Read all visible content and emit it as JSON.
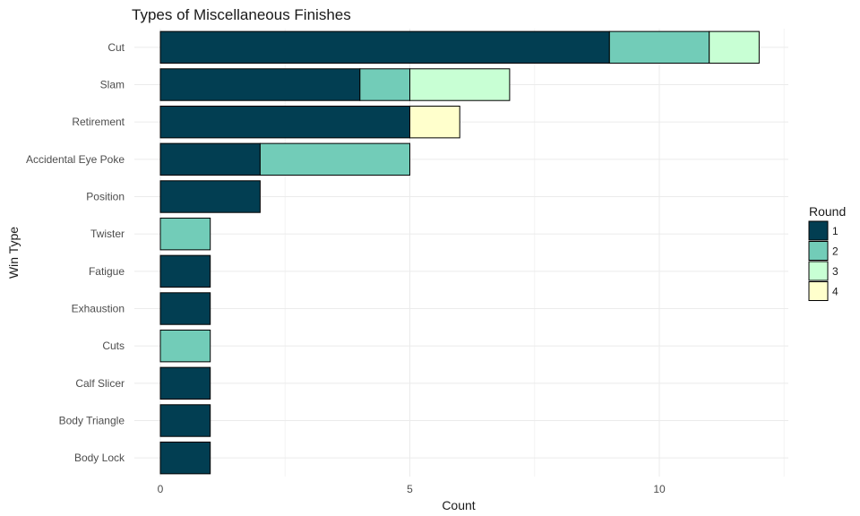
{
  "chart_data": {
    "type": "bar",
    "orientation": "horizontal",
    "stacked": true,
    "title": "Types of Miscellaneous Finishes",
    "xlabel": "Count",
    "ylabel": "Win Type",
    "xlim": [
      0,
      12.5
    ],
    "xticks": [
      0,
      5,
      10
    ],
    "grid": true,
    "legend": {
      "title": "Round",
      "position": "right"
    },
    "categories": [
      "Cut",
      "Slam",
      "Retirement",
      "Accidental Eye Poke",
      "Position",
      "Twister",
      "Fatigue",
      "Exhaustion",
      "Cuts",
      "Calf Slicer",
      "Body Triangle",
      "Body Lock"
    ],
    "series": [
      {
        "name": "1",
        "color": "#023e52",
        "values": [
          9,
          4,
          5,
          2,
          2,
          0,
          1,
          1,
          0,
          1,
          1,
          1
        ]
      },
      {
        "name": "2",
        "color": "#72ccb8",
        "values": [
          2,
          1,
          0,
          3,
          0,
          1,
          0,
          0,
          1,
          0,
          0,
          0
        ]
      },
      {
        "name": "3",
        "color": "#c8ffd4",
        "values": [
          1,
          2,
          0,
          0,
          0,
          0,
          0,
          0,
          0,
          0,
          0,
          0
        ]
      },
      {
        "name": "4",
        "color": "#ffffcc",
        "values": [
          0,
          0,
          1,
          0,
          0,
          0,
          0,
          0,
          0,
          0,
          0,
          0
        ]
      }
    ]
  }
}
